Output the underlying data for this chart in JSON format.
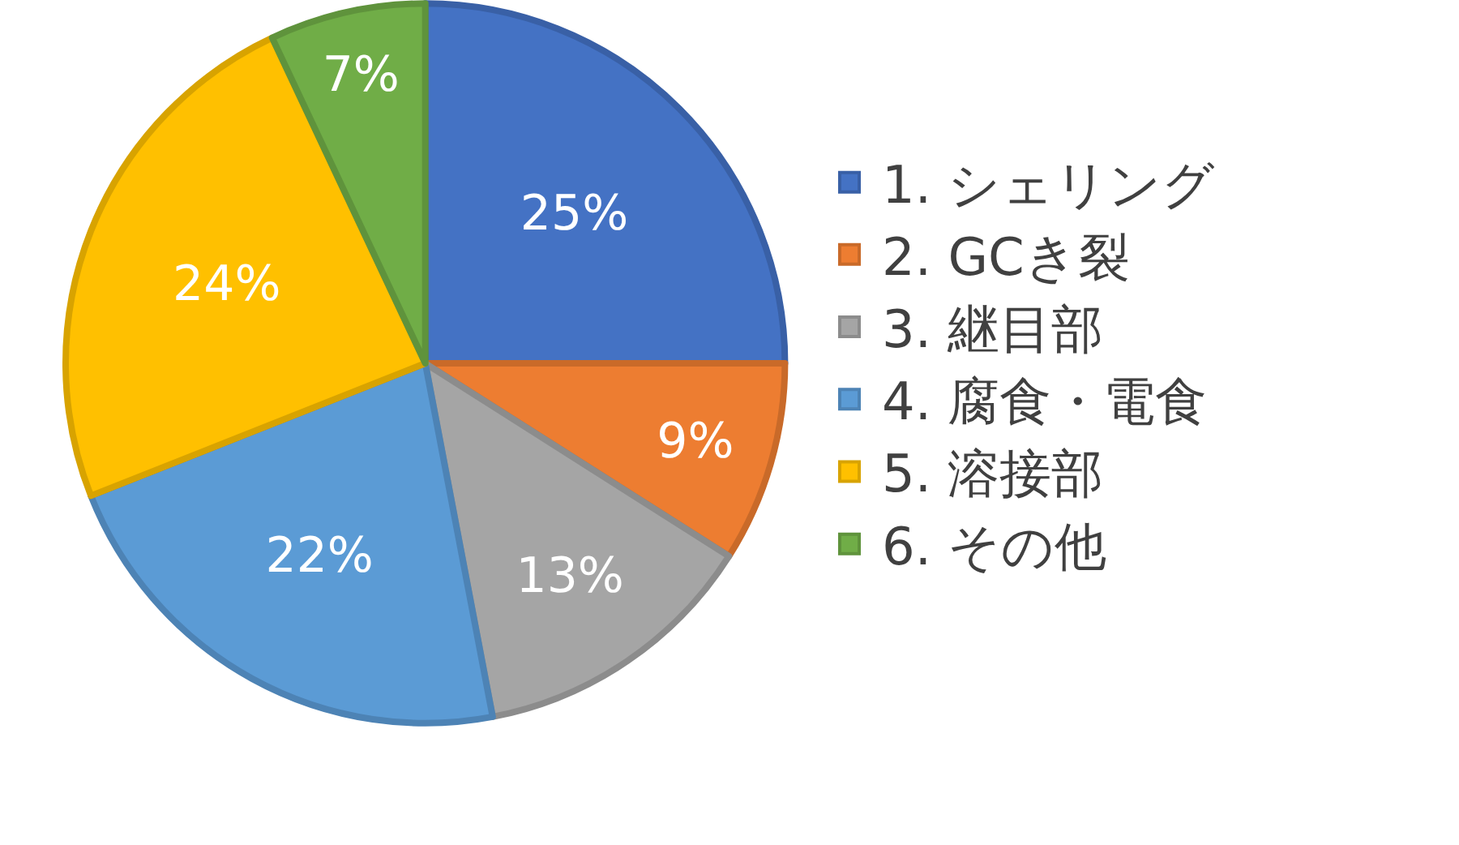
{
  "chart_data": {
    "type": "pie",
    "categories": [
      "1. シェリング",
      "2. GCき裂",
      "3. 継目部",
      "4. 腐食・電食",
      "5. 溶接部",
      "6. その他"
    ],
    "values": [
      25,
      9,
      13,
      22,
      24,
      7
    ],
    "value_labels": [
      "25%",
      "9%",
      "13%",
      "22%",
      "24%",
      "7%"
    ],
    "colors": [
      "#4472c4",
      "#ed7d31",
      "#a5a5a5",
      "#5b9bd5",
      "#ffc000",
      "#70ad47"
    ],
    "legend": "right"
  }
}
